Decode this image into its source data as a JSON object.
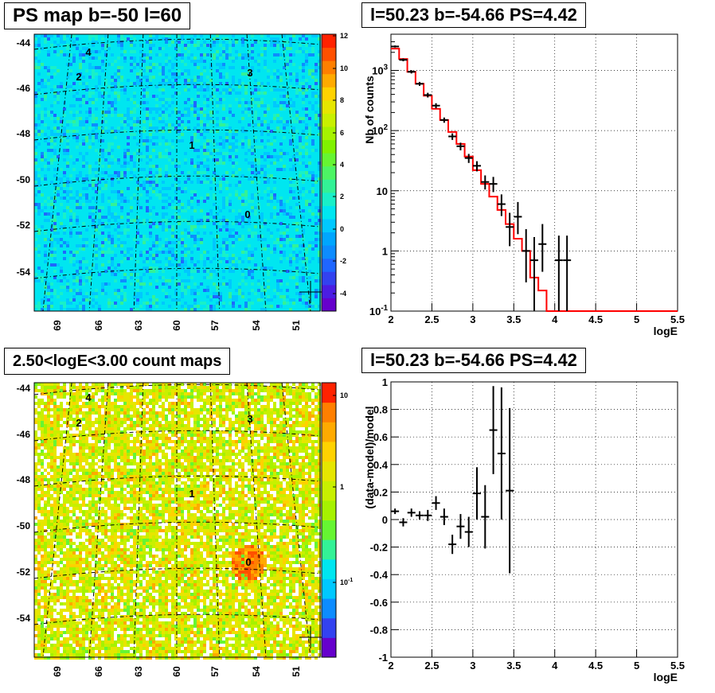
{
  "panels": {
    "ps_map": {
      "title": "PS map b=-50 l=60",
      "y_ticks": [
        "-44",
        "-46",
        "-48",
        "-50",
        "-52",
        "-54"
      ],
      "x_ticks": [
        "69",
        "66",
        "63",
        "60",
        "57",
        "54",
        "51"
      ],
      "colorbar_ticks": [
        "12",
        "10",
        "8",
        "6",
        "4",
        "2",
        "0",
        "-2",
        "-4"
      ],
      "sources": [
        "0",
        "1",
        "2",
        "3",
        "4"
      ]
    },
    "counts_map": {
      "title": "2.50<logE<3.00 count maps",
      "y_ticks": [
        "-44",
        "-46",
        "-48",
        "-50",
        "-52",
        "-54"
      ],
      "x_ticks": [
        "69",
        "66",
        "63",
        "60",
        "57",
        "54",
        "51"
      ],
      "colorbar_ticks": [
        "10",
        "1",
        "10-1"
      ],
      "sources": [
        "0",
        "1",
        "2",
        "3",
        "4"
      ]
    }
  },
  "chart_data": [
    {
      "type": "line",
      "title": "l=50.23 b=-54.66 PS=4.42",
      "xlabel": "logE",
      "ylabel": "Nb of counts",
      "y_scale": "log",
      "xlim": [
        2,
        5.5
      ],
      "ylim": [
        0.1,
        4000
      ],
      "x_tick_labels": [
        "2",
        "2.5",
        "3",
        "3.5",
        "4",
        "4.5",
        "5",
        "5.5"
      ],
      "y_tick_labels": [
        "10-1",
        "1",
        "10",
        "102",
        "103"
      ],
      "grid": true,
      "model_color": "#ff0000",
      "data_color": "#000000",
      "model_edges": [
        2.0,
        2.1,
        2.2,
        2.3,
        2.4,
        2.5,
        2.6,
        2.7,
        2.8,
        2.9,
        3.0,
        3.1,
        3.2,
        3.3,
        3.4,
        3.5,
        3.6,
        3.7,
        3.8,
        3.9,
        4.0,
        4.1,
        4.2,
        4.3,
        4.4,
        4.5,
        4.6,
        4.7,
        4.8,
        4.9,
        5.0,
        5.1,
        5.2,
        5.3,
        5.4,
        5.5
      ],
      "model_values": [
        2300,
        1550,
        950,
        600,
        380,
        230,
        150,
        95,
        60,
        37,
        22,
        13,
        8,
        4.8,
        2.8,
        1.6,
        1.0,
        0.36,
        0.22,
        0.1,
        0.1,
        0.1,
        0.1,
        0.1,
        0.1,
        0.1,
        0.1,
        0.1,
        0.1,
        0.1,
        0.1,
        0.1,
        0.1,
        0.1,
        0.1
      ],
      "data_points": [
        {
          "x": 2.05,
          "y": 2500,
          "lo": 2400,
          "hi": 2600
        },
        {
          "x": 2.15,
          "y": 1500,
          "lo": 1420,
          "hi": 1580
        },
        {
          "x": 2.25,
          "y": 950,
          "lo": 890,
          "hi": 1010
        },
        {
          "x": 2.35,
          "y": 600,
          "lo": 555,
          "hi": 645
        },
        {
          "x": 2.45,
          "y": 390,
          "lo": 355,
          "hi": 425
        },
        {
          "x": 2.55,
          "y": 260,
          "lo": 235,
          "hi": 285
        },
        {
          "x": 2.65,
          "y": 150,
          "lo": 135,
          "hi": 165
        },
        {
          "x": 2.75,
          "y": 80,
          "lo": 70,
          "hi": 90
        },
        {
          "x": 2.85,
          "y": 55,
          "lo": 47,
          "hi": 63
        },
        {
          "x": 2.95,
          "y": 35,
          "lo": 29,
          "hi": 41
        },
        {
          "x": 3.05,
          "y": 26,
          "lo": 21,
          "hi": 31
        },
        {
          "x": 3.15,
          "y": 14,
          "lo": 10.5,
          "hi": 18
        },
        {
          "x": 3.25,
          "y": 13,
          "lo": 9.5,
          "hi": 17
        },
        {
          "x": 3.35,
          "y": 6,
          "lo": 3.8,
          "hi": 8.7
        },
        {
          "x": 3.45,
          "y": 2.5,
          "lo": 1.2,
          "hi": 4.3
        },
        {
          "x": 3.55,
          "y": 3.7,
          "lo": 1.9,
          "hi": 6.5
        },
        {
          "x": 3.65,
          "y": 1.0,
          "lo": 0.3,
          "hi": 2.3
        },
        {
          "x": 3.75,
          "y": 0.7,
          "lo": 0.1,
          "hi": 1.7
        },
        {
          "x": 3.85,
          "y": 1.3,
          "lo": 0.45,
          "hi": 2.8
        },
        {
          "x": 4.05,
          "y": 0.7,
          "lo": 0.1,
          "hi": 1.8
        },
        {
          "x": 4.15,
          "y": 0.7,
          "lo": 0.1,
          "hi": 1.8
        }
      ]
    },
    {
      "type": "scatter",
      "title": "l=50.23 b=-54.66 PS=4.42",
      "xlabel": "logE",
      "ylabel": "(data-model)/model",
      "xlim": [
        2,
        5.5
      ],
      "ylim": [
        -1,
        1
      ],
      "x_tick_labels": [
        "2",
        "2.5",
        "3",
        "3.5",
        "4",
        "4.5",
        "5",
        "5.5"
      ],
      "y_tick_labels": [
        "-1",
        "-0.8",
        "-0.6",
        "-0.4",
        "-0.2",
        "0",
        "0.2",
        "0.4",
        "0.6",
        "0.8",
        "1"
      ],
      "grid": true,
      "data_points": [
        {
          "x": 2.05,
          "y": 0.06,
          "err": 0.02
        },
        {
          "x": 2.15,
          "y": -0.02,
          "err": 0.03
        },
        {
          "x": 2.25,
          "y": 0.05,
          "err": 0.03
        },
        {
          "x": 2.35,
          "y": 0.03,
          "err": 0.03
        },
        {
          "x": 2.45,
          "y": 0.03,
          "err": 0.04
        },
        {
          "x": 2.55,
          "y": 0.12,
          "err": 0.05
        },
        {
          "x": 2.65,
          "y": 0.02,
          "err": 0.06
        },
        {
          "x": 2.75,
          "y": -0.18,
          "err": 0.07
        },
        {
          "x": 2.85,
          "y": -0.05,
          "err": 0.09
        },
        {
          "x": 2.95,
          "y": -0.09,
          "err": 0.11
        },
        {
          "x": 3.05,
          "y": 0.19,
          "err": 0.19
        },
        {
          "x": 3.15,
          "y": 0.02,
          "err": 0.23
        },
        {
          "x": 3.25,
          "y": 0.65,
          "err": 0.32
        },
        {
          "x": 3.35,
          "y": 0.48,
          "err": 0.48
        },
        {
          "x": 3.45,
          "y": 0.21,
          "err": 0.6
        }
      ]
    }
  ]
}
